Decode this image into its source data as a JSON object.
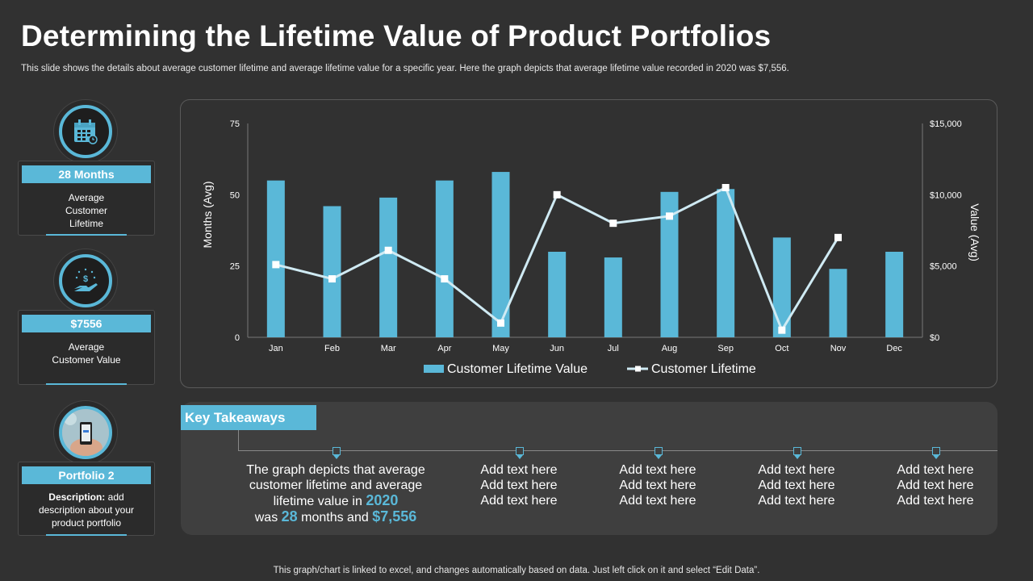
{
  "header": {
    "title": "Determining the Lifetime Value of Product Portfolios",
    "subtitle": "This slide shows the details about average customer lifetime and average lifetime value for a specific year. Here the graph depicts that average lifetime value recorded in 2020 was $7,556."
  },
  "stats": [
    {
      "tag": "28 Months",
      "desc": "Average Customer Lifetime",
      "icon": "calendar-icon"
    },
    {
      "tag": "$7556",
      "desc": "Average Customer Value",
      "icon": "money-hand-icon"
    },
    {
      "tag": "Portfolio 2",
      "desc_bold": "Description:",
      "desc": "add description about your product portfolio",
      "icon": "phone-photo-icon"
    }
  ],
  "chart_data": {
    "type": "bar+line",
    "categories": [
      "Jan",
      "Feb",
      "Mar",
      "Apr",
      "May",
      "Jun",
      "Jul",
      "Aug",
      "Sep",
      "Oct",
      "Nov",
      "Dec"
    ],
    "series": [
      {
        "name": "Customer Lifetime Value",
        "type": "bar",
        "axis": "left",
        "values": [
          55,
          46,
          49,
          55,
          58,
          30,
          28,
          51,
          52,
          35,
          24,
          30
        ]
      },
      {
        "name": "Customer Lifetime",
        "type": "line",
        "axis": "right",
        "values": [
          5100,
          4100,
          6100,
          4100,
          1000,
          10000,
          8000,
          8500,
          10500,
          500,
          7000,
          null
        ]
      }
    ],
    "ylabel": "Months (Avg)",
    "y2label": "Value (Avg)",
    "ylim": [
      0,
      75
    ],
    "yticks": [
      "0",
      "25",
      "50",
      "75"
    ],
    "y2lim": [
      0,
      15000
    ],
    "y2ticks": [
      "$0",
      "$5,000",
      "$10,000",
      "$15,000"
    ],
    "colors": {
      "bar": "#5ab8d8",
      "line": "#cfeaf3"
    },
    "legend": "bottom-center"
  },
  "takeaways": {
    "label": "Key Takeaways",
    "main": {
      "t1": "The graph depicts that average customer lifetime and average lifetime value in",
      "year": "2020",
      "t2": "was",
      "months": "28",
      "t3": "months and",
      "value": "$7,556"
    },
    "placeholders": [
      [
        "Add text here",
        "Add text here",
        "Add text here"
      ],
      [
        "Add text here",
        "Add text here",
        "Add text here"
      ],
      [
        "Add text here",
        "Add text here",
        "Add text here"
      ],
      [
        "Add text here",
        "Add text here",
        "Add text here"
      ]
    ]
  },
  "footer": "This graph/chart is linked to excel, and changes automatically based on data. Just left click on it and select “Edit Data”."
}
